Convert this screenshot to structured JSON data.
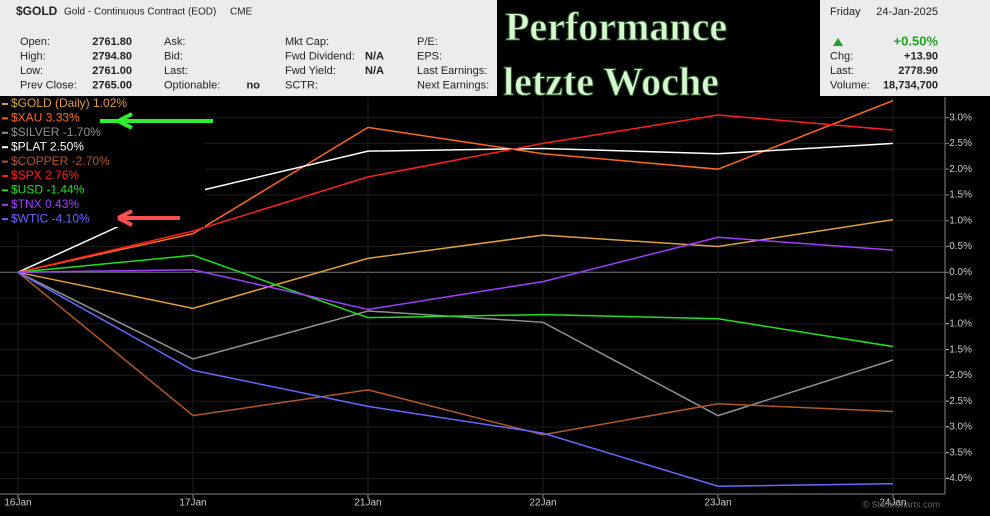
{
  "header": {
    "symbol": "$GOLD",
    "description": "Gold - Continuous Contract (EOD)",
    "exchange": "CME",
    "columns": [
      [
        {
          "label": "Open:",
          "value": "2761.80"
        },
        {
          "label": "High:",
          "value": "2794.80"
        },
        {
          "label": "Low:",
          "value": "2761.00"
        },
        {
          "label": "Prev Close:",
          "value": "2765.00"
        }
      ],
      [
        {
          "label": "Ask:"
        },
        {
          "label": "Bid:"
        },
        {
          "label": "Last:"
        },
        {
          "label": "Optionable:",
          "value": "no"
        }
      ],
      [
        {
          "label": "Mkt Cap:"
        },
        {
          "label": "Fwd Dividend:",
          "value": "N/A"
        },
        {
          "label": "Fwd Yield:",
          "value": "N/A"
        },
        {
          "label": "SCTR:"
        }
      ],
      [
        {
          "label": "P/E:"
        },
        {
          "label": "EPS:"
        },
        {
          "label": "Last Earnings:"
        },
        {
          "label": "Next Earnings:"
        }
      ]
    ]
  },
  "quote": {
    "day": "Friday",
    "date": "24-Jan-2025",
    "change_pct": "+0.50%",
    "rows": [
      {
        "label": "Chg:",
        "value": "+13.90"
      },
      {
        "label": "Last:",
        "value": "2778.90"
      },
      {
        "label": "Volume:",
        "value": "18,734,700"
      }
    ]
  },
  "overlay_title": [
    "Performance",
    "letzte Woche"
  ],
  "watermark": "© StockCharts.com",
  "chart_data": {
    "type": "line",
    "categories": [
      "16Jan",
      "17Jan",
      "21Jan",
      "22Jan",
      "23Jan",
      "24Jan"
    ],
    "ylim": [
      -4.3,
      3.4
    ],
    "yticks": [
      {
        "value": 3.0,
        "label": "3.0%"
      },
      {
        "value": 2.5,
        "label": "2.5%"
      },
      {
        "value": 2.0,
        "label": "2.0%"
      },
      {
        "value": 1.5,
        "label": "1.5%"
      },
      {
        "value": 1.0,
        "label": "1.0%"
      },
      {
        "value": 0.5,
        "label": "0.5%"
      },
      {
        "value": 0.0,
        "label": "0.0%"
      },
      {
        "value": -0.5,
        "label": "-0.5%"
      },
      {
        "value": -1.0,
        "label": "-1.0%"
      },
      {
        "value": -1.5,
        "label": "-1.5%"
      },
      {
        "value": -2.0,
        "label": "-2.0%"
      },
      {
        "value": -2.5,
        "label": "-2.5%"
      },
      {
        "value": -3.0,
        "label": "-3.0%"
      },
      {
        "value": -3.5,
        "label": "-3.5%"
      },
      {
        "value": -4.0,
        "label": "-4.0%"
      }
    ],
    "grid": true,
    "series": [
      {
        "name": "$GOLD (Daily) 1.02%",
        "color": "#e0a040",
        "values": [
          0,
          -0.7,
          0.27,
          0.72,
          0.5,
          1.02
        ]
      },
      {
        "name": "$XAU 3.33%",
        "color": "#ff6a20",
        "values": [
          0,
          0.75,
          2.81,
          2.3,
          2.0,
          3.33
        ]
      },
      {
        "name": "$SILVER -1.70%",
        "color": "#909090",
        "values": [
          0,
          -1.68,
          -0.75,
          -0.97,
          -2.78,
          -1.7
        ]
      },
      {
        "name": "$PLAT 2.50%",
        "color": "#ffffff",
        "values": [
          0,
          1.55,
          2.35,
          2.4,
          2.3,
          2.5
        ]
      },
      {
        "name": "$COPPER -2.70%",
        "color": "#b05a28",
        "values": [
          0,
          -2.78,
          -2.28,
          -3.15,
          -2.55,
          -2.7
        ]
      },
      {
        "name": "$SPX 2.76%",
        "color": "#ff2020",
        "values": [
          0,
          0.8,
          1.85,
          2.5,
          3.05,
          2.76
        ]
      },
      {
        "name": "$USD -1.44%",
        "color": "#20e020",
        "values": [
          0,
          0.33,
          -0.88,
          -0.82,
          -0.9,
          -1.44
        ]
      },
      {
        "name": "$TNX 0.43%",
        "color": "#a040ff",
        "values": [
          0,
          0.05,
          -0.72,
          -0.18,
          0.68,
          0.43
        ]
      },
      {
        "name": "$WTIC -4.10%",
        "color": "#6868ff",
        "values": [
          0,
          -1.9,
          -2.6,
          -3.12,
          -4.15,
          -4.1
        ]
      }
    ]
  }
}
